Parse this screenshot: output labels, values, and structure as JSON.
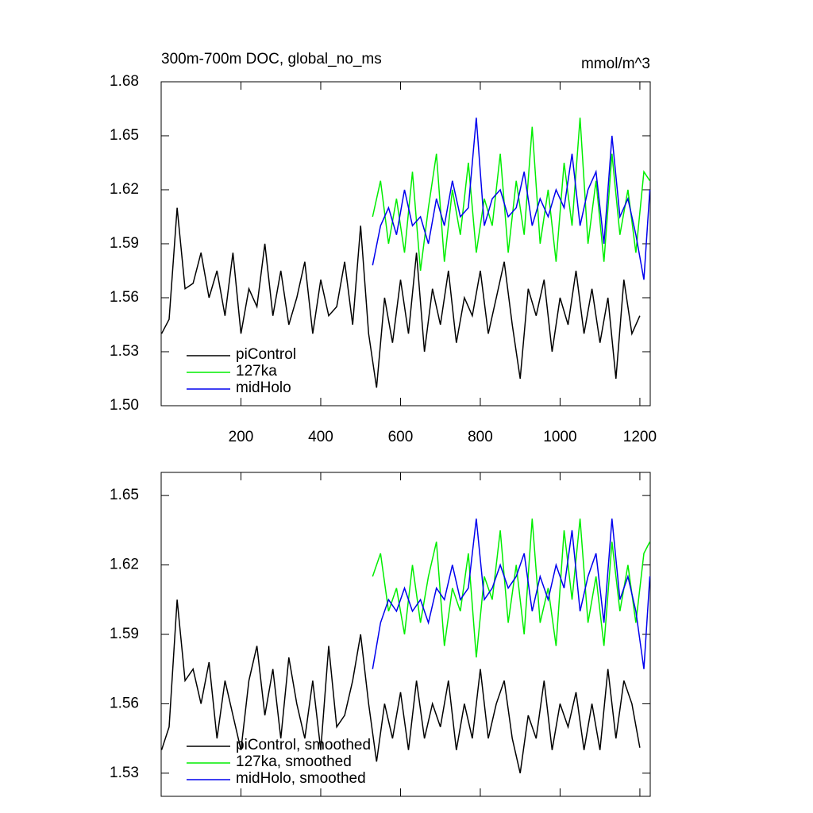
{
  "chart_data": [
    {
      "type": "line",
      "title": "300m-700m DOC, global_no_ms",
      "units": "mmol/m^3",
      "xlim": [
        0,
        1226
      ],
      "ylim": [
        1.5,
        1.68
      ],
      "xticks": [
        200,
        400,
        600,
        800,
        1000,
        1200
      ],
      "yticks": [
        {
          "value": 1.5,
          "label": "1.50"
        },
        1.53,
        1.56,
        1.59,
        1.62,
        1.65,
        1.68
      ],
      "xtick_labels": true,
      "legend": "lower left",
      "series": [
        {
          "name": "piControl",
          "color": "#000000",
          "x": [
            1,
            20,
            40,
            60,
            80,
            100,
            120,
            140,
            160,
            180,
            200,
            220,
            240,
            260,
            280,
            300,
            320,
            340,
            360,
            380,
            400,
            420,
            440,
            460,
            480,
            500,
            520,
            540,
            560,
            580,
            600,
            620,
            640,
            660,
            680,
            700,
            720,
            740,
            760,
            780,
            800,
            820,
            840,
            860,
            880,
            900,
            920,
            940,
            960,
            980,
            1000,
            1020,
            1040,
            1060,
            1080,
            1100,
            1120,
            1140,
            1160,
            1180,
            1200
          ],
          "values": [
            1.54,
            1.548,
            1.61,
            1.565,
            1.568,
            1.585,
            1.56,
            1.575,
            1.55,
            1.585,
            1.54,
            1.565,
            1.555,
            1.59,
            1.55,
            1.575,
            1.545,
            1.56,
            1.58,
            1.54,
            1.57,
            1.55,
            1.555,
            1.58,
            1.545,
            1.6,
            1.54,
            1.51,
            1.56,
            1.535,
            1.57,
            1.54,
            1.585,
            1.53,
            1.565,
            1.545,
            1.575,
            1.535,
            1.56,
            1.55,
            1.575,
            1.54,
            1.56,
            1.58,
            1.545,
            1.515,
            1.565,
            1.55,
            1.57,
            1.53,
            1.56,
            1.545,
            1.575,
            1.54,
            1.565,
            1.535,
            1.56,
            1.515,
            1.57,
            1.54,
            1.55
          ]
        },
        {
          "name": "127ka",
          "color": "#00ee00",
          "x": [
            530,
            550,
            570,
            590,
            610,
            630,
            650,
            670,
            690,
            710,
            730,
            750,
            770,
            790,
            810,
            830,
            850,
            870,
            890,
            910,
            930,
            950,
            970,
            990,
            1010,
            1030,
            1050,
            1070,
            1090,
            1110,
            1130,
            1150,
            1170,
            1190,
            1210,
            1225
          ],
          "values": [
            1.605,
            1.625,
            1.59,
            1.615,
            1.585,
            1.63,
            1.575,
            1.61,
            1.64,
            1.58,
            1.62,
            1.595,
            1.635,
            1.585,
            1.615,
            1.6,
            1.64,
            1.585,
            1.625,
            1.595,
            1.655,
            1.59,
            1.62,
            1.58,
            1.635,
            1.6,
            1.66,
            1.59,
            1.625,
            1.58,
            1.64,
            1.595,
            1.62,
            1.585,
            1.63,
            1.625
          ]
        },
        {
          "name": "midHolo",
          "color": "#0000ee",
          "x": [
            530,
            550,
            570,
            590,
            610,
            630,
            650,
            670,
            690,
            710,
            730,
            750,
            770,
            790,
            810,
            830,
            850,
            870,
            890,
            910,
            930,
            950,
            970,
            990,
            1010,
            1030,
            1050,
            1070,
            1090,
            1110,
            1130,
            1150,
            1170,
            1190,
            1210,
            1225
          ],
          "values": [
            1.578,
            1.6,
            1.61,
            1.595,
            1.62,
            1.6,
            1.605,
            1.59,
            1.615,
            1.6,
            1.625,
            1.605,
            1.61,
            1.66,
            1.6,
            1.615,
            1.62,
            1.605,
            1.61,
            1.63,
            1.6,
            1.615,
            1.605,
            1.62,
            1.61,
            1.64,
            1.6,
            1.62,
            1.63,
            1.59,
            1.65,
            1.605,
            1.615,
            1.595,
            1.57,
            1.62
          ]
        }
      ]
    },
    {
      "type": "line",
      "xlim": [
        0,
        1226
      ],
      "ylim": [
        1.52,
        1.66
      ],
      "xticks": [
        200,
        400,
        600,
        800,
        1000,
        1200
      ],
      "yticks": [
        1.53,
        1.56,
        1.59,
        1.62,
        1.65
      ],
      "xtick_labels": false,
      "legend": "lower left",
      "series": [
        {
          "name": "piControl, smoothed",
          "color": "#000000",
          "x": [
            1,
            20,
            40,
            60,
            80,
            100,
            120,
            140,
            160,
            180,
            200,
            220,
            240,
            260,
            280,
            300,
            320,
            340,
            360,
            380,
            400,
            420,
            440,
            460,
            480,
            500,
            520,
            540,
            560,
            580,
            600,
            620,
            640,
            660,
            680,
            700,
            720,
            740,
            760,
            780,
            800,
            820,
            840,
            860,
            880,
            900,
            920,
            940,
            960,
            980,
            1000,
            1020,
            1040,
            1060,
            1080,
            1100,
            1120,
            1140,
            1160,
            1180,
            1200
          ],
          "values": [
            1.54,
            1.55,
            1.605,
            1.57,
            1.575,
            1.56,
            1.578,
            1.545,
            1.57,
            1.555,
            1.54,
            1.57,
            1.585,
            1.555,
            1.575,
            1.545,
            1.58,
            1.56,
            1.545,
            1.57,
            1.54,
            1.585,
            1.55,
            1.555,
            1.57,
            1.59,
            1.56,
            1.535,
            1.56,
            1.545,
            1.565,
            1.54,
            1.57,
            1.545,
            1.56,
            1.55,
            1.57,
            1.54,
            1.56,
            1.545,
            1.575,
            1.545,
            1.56,
            1.57,
            1.545,
            1.53,
            1.555,
            1.545,
            1.57,
            1.54,
            1.56,
            1.55,
            1.565,
            1.54,
            1.56,
            1.54,
            1.575,
            1.545,
            1.57,
            1.56,
            1.541
          ]
        },
        {
          "name": "127ka, smoothed",
          "color": "#00ee00",
          "x": [
            530,
            550,
            570,
            590,
            610,
            630,
            650,
            670,
            690,
            710,
            730,
            750,
            770,
            790,
            810,
            830,
            850,
            870,
            890,
            910,
            930,
            950,
            970,
            990,
            1010,
            1030,
            1050,
            1070,
            1090,
            1110,
            1130,
            1150,
            1170,
            1190,
            1210,
            1225
          ],
          "values": [
            1.615,
            1.625,
            1.6,
            1.61,
            1.59,
            1.62,
            1.595,
            1.615,
            1.63,
            1.585,
            1.61,
            1.6,
            1.625,
            1.58,
            1.615,
            1.605,
            1.635,
            1.595,
            1.62,
            1.59,
            1.64,
            1.595,
            1.61,
            1.585,
            1.635,
            1.605,
            1.64,
            1.595,
            1.615,
            1.585,
            1.63,
            1.6,
            1.62,
            1.595,
            1.625,
            1.63
          ]
        },
        {
          "name": "midHolo, smoothed",
          "color": "#0000ee",
          "x": [
            530,
            550,
            570,
            590,
            610,
            630,
            650,
            670,
            690,
            710,
            730,
            750,
            770,
            790,
            810,
            830,
            850,
            870,
            890,
            910,
            930,
            950,
            970,
            990,
            1010,
            1030,
            1050,
            1070,
            1090,
            1110,
            1130,
            1150,
            1170,
            1190,
            1210,
            1225
          ],
          "values": [
            1.575,
            1.595,
            1.605,
            1.6,
            1.61,
            1.6,
            1.605,
            1.595,
            1.61,
            1.605,
            1.62,
            1.605,
            1.61,
            1.64,
            1.605,
            1.61,
            1.62,
            1.61,
            1.615,
            1.625,
            1.6,
            1.615,
            1.605,
            1.62,
            1.61,
            1.635,
            1.6,
            1.615,
            1.625,
            1.595,
            1.64,
            1.605,
            1.615,
            1.6,
            1.575,
            1.615
          ]
        }
      ]
    }
  ]
}
